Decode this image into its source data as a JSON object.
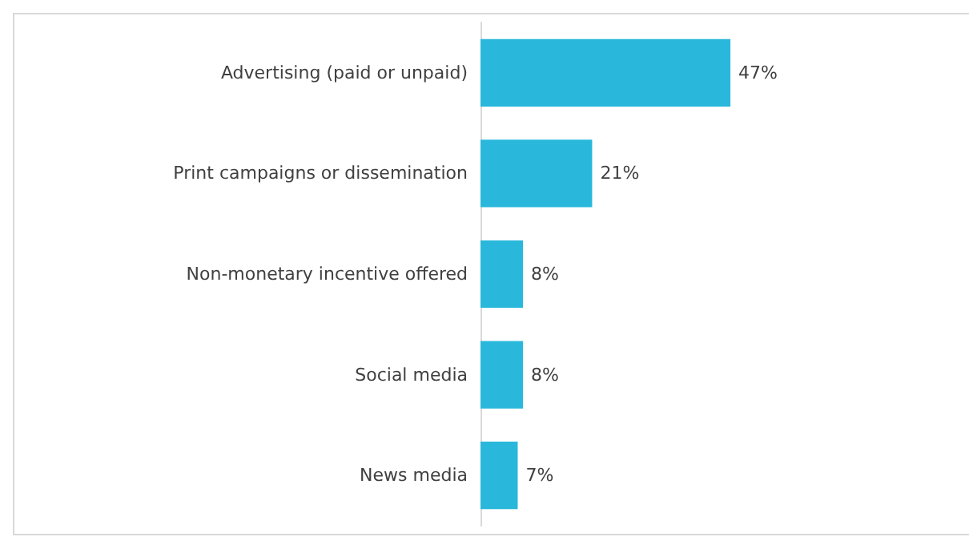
{
  "chart_data": {
    "type": "bar",
    "orientation": "horizontal",
    "categories": [
      "Advertising (paid or unpaid)",
      "Print campaigns or dissemination",
      "Non-monetary incentive offered",
      "Social media",
      "News media"
    ],
    "values": [
      47,
      21,
      8,
      8,
      7
    ],
    "color": "#29b8db",
    "value_labels": [
      "47%",
      "21%",
      "8%",
      "8%",
      "7%"
    ],
    "grid": false
  }
}
